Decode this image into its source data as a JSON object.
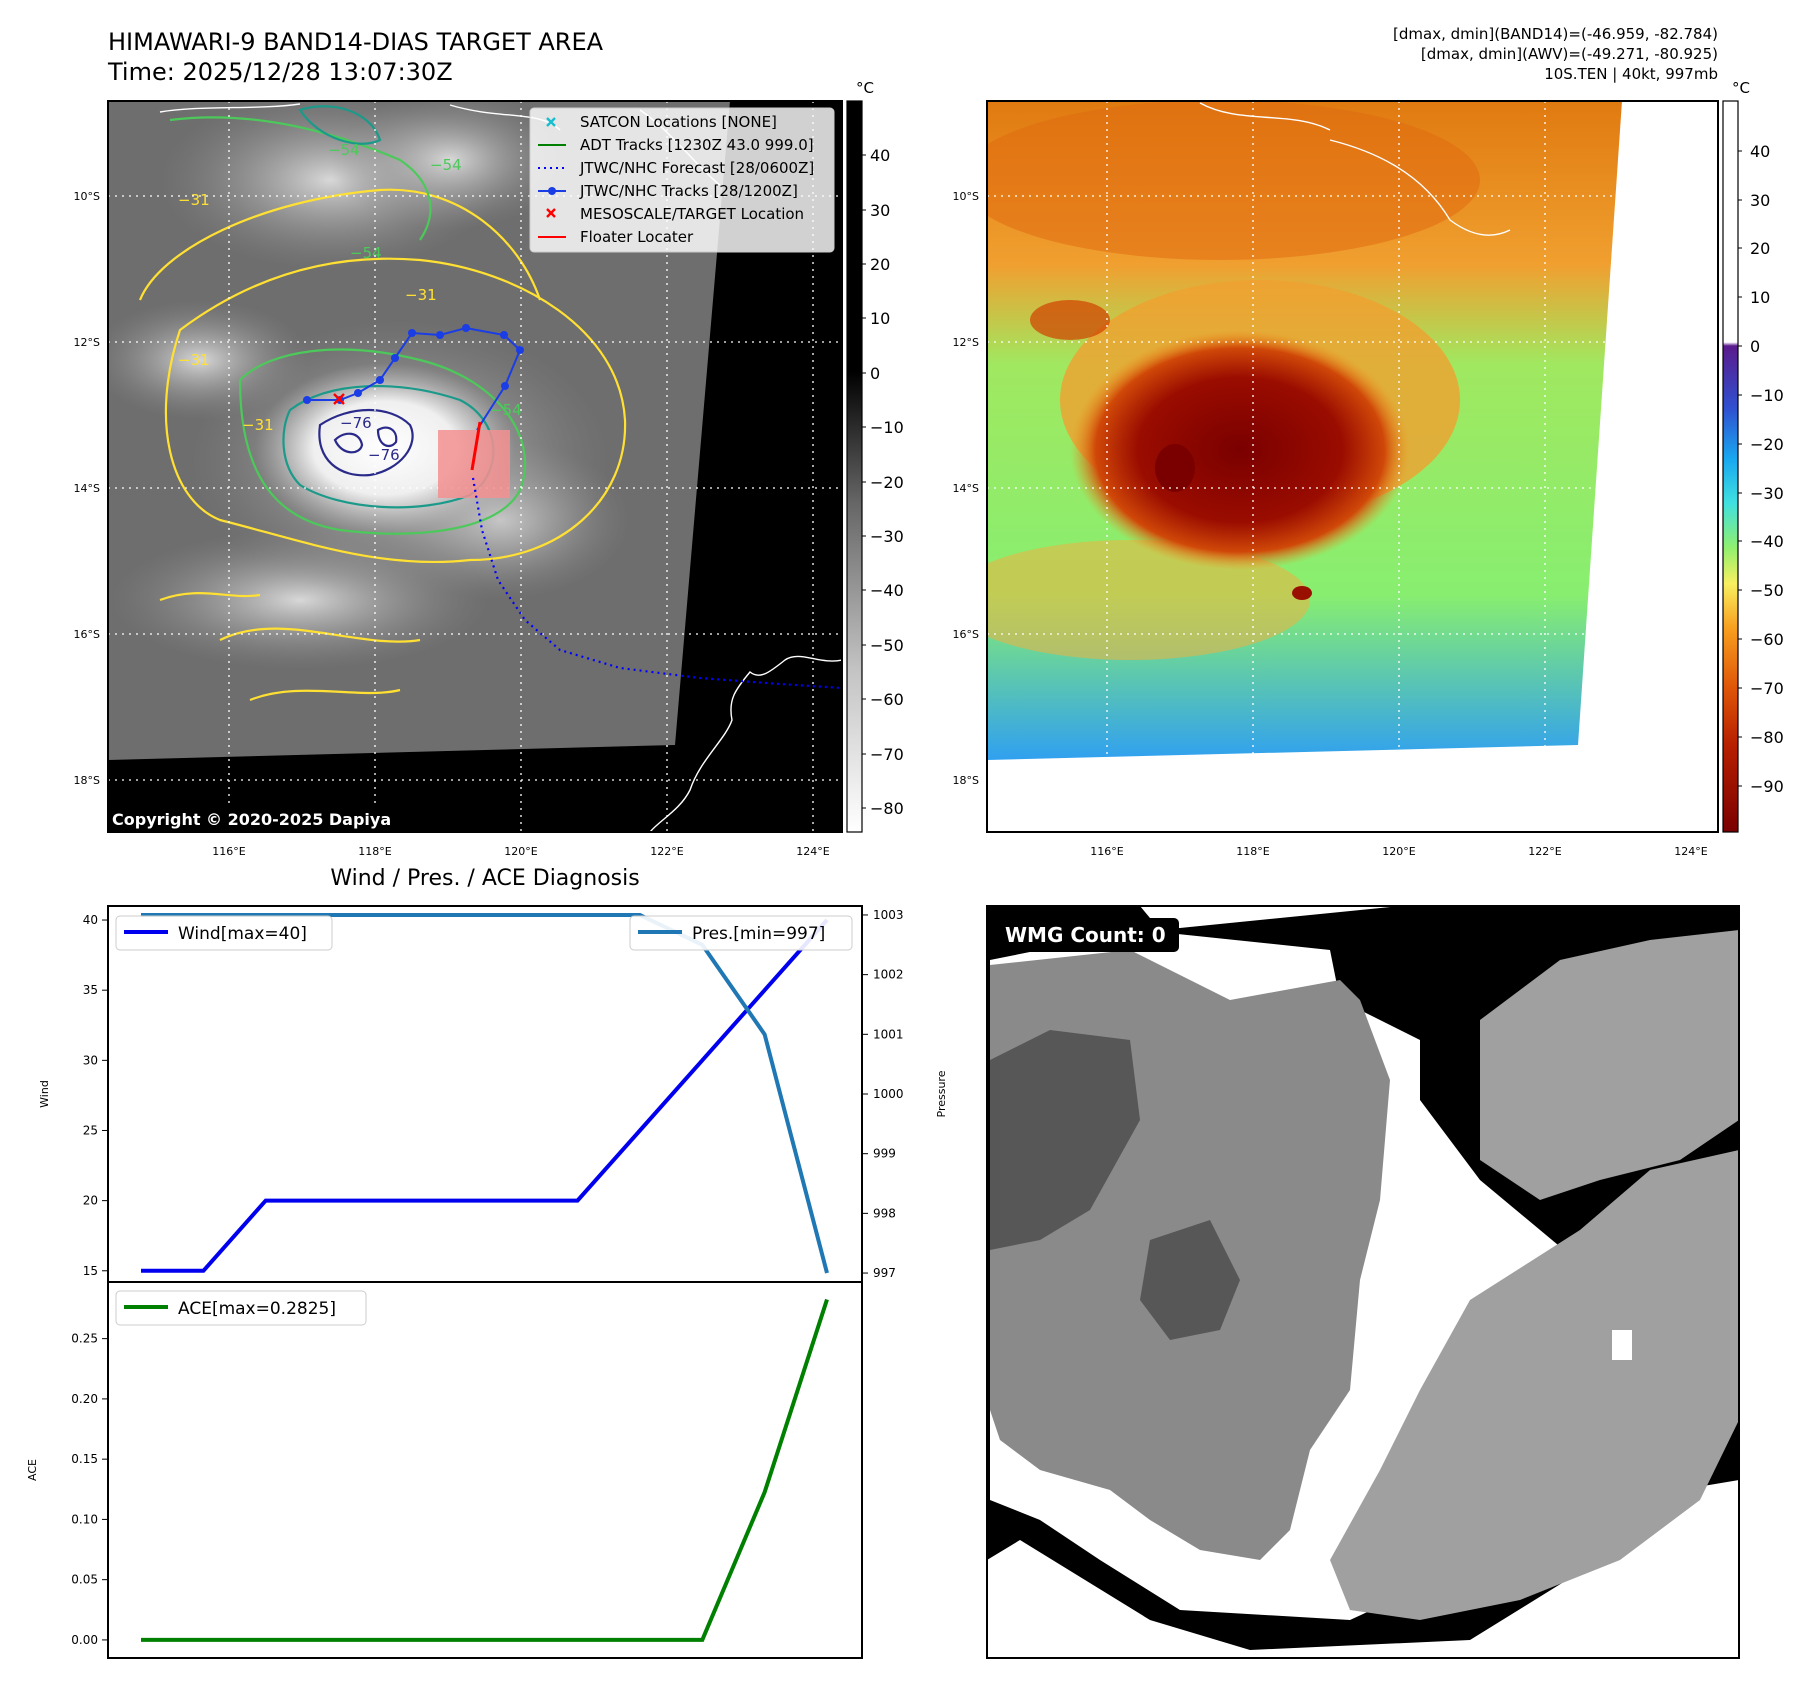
{
  "header": {
    "title_line1": "HIMAWARI-9 BAND14-DIAS TARGET AREA",
    "title_line2": "Time: 2025/12/28 13:07:30Z",
    "stats_line1": "[dmax, dmin](BAND14)=(-46.959, -82.784)",
    "stats_line2": "[dmax, dmin](AWV)=(-49.271, -80.925)",
    "stats_line3": "10S.TEN | 40kt, 997mb"
  },
  "colors": {
    "wind": "#0000ee",
    "pressure": "#1f77b4",
    "ace": "#008000",
    "track": "#1a3de6",
    "forecast": "#0000ff",
    "floater": "#ff0000",
    "satcon": "#17becf",
    "adt": "#008000",
    "contour_yellow": "#ffe033",
    "contour_green": "#4cc95a",
    "contour_teal": "#1b9a8a",
    "contour_navy": "#2a2a8a"
  },
  "map_left": {
    "colorbar_unit": "°C",
    "colorbar_ticks": [
      "40",
      "30",
      "20",
      "10",
      "0",
      "−10",
      "−20",
      "−30",
      "−40",
      "−50",
      "−60",
      "−70",
      "−80"
    ],
    "lat_labels": [
      "10°S",
      "12°S",
      "14°S",
      "16°S",
      "18°S"
    ],
    "lon_labels": [
      "116°E",
      "118°E",
      "120°E",
      "122°E",
      "124°E"
    ],
    "contour_labels": [
      "−54",
      "−54",
      "−31",
      "−31",
      "−54",
      "−31",
      "−54",
      "−76",
      "−76",
      "−31"
    ],
    "copyright": "Copyright © 2020-2025 Dapiya",
    "legend": [
      {
        "icon": "satcon-marker-icon",
        "label": "SATCON Locations [NONE]"
      },
      {
        "icon": "adt-line-icon",
        "label": "ADT Tracks [1230Z 43.0 999.0]"
      },
      {
        "icon": "forecast-dotted-line-icon",
        "label": "JTWC/NHC Forecast [28/0600Z]"
      },
      {
        "icon": "track-line-dot-icon",
        "label": "JTWC/NHC Tracks [28/1200Z]"
      },
      {
        "icon": "target-x-icon",
        "label": "MESOSCALE/TARGET Location"
      },
      {
        "icon": "floater-line-icon",
        "label": "Floater Locater"
      }
    ]
  },
  "map_right": {
    "colorbar_unit": "°C",
    "colorbar_ticks": [
      "40",
      "30",
      "20",
      "10",
      "0",
      "−10",
      "−20",
      "−30",
      "−40",
      "−50",
      "−60",
      "−70",
      "−80",
      "−90"
    ],
    "lat_labels": [
      "10°S",
      "12°S",
      "14°S",
      "16°S",
      "18°S"
    ],
    "lon_labels": [
      "116°E",
      "118°E",
      "120°E",
      "122°E",
      "124°E"
    ]
  },
  "wmg_panel": {
    "badge": "WMG Count: 0"
  },
  "chart_data": [
    {
      "type": "line",
      "title": "Wind / Pres. / ACE Diagnosis",
      "x": [
        0,
        1,
        2,
        3,
        4,
        5,
        6,
        7,
        8,
        9,
        10,
        11
      ],
      "series": [
        {
          "name": "Wind[max=40]",
          "axis": "left",
          "values": [
            15,
            15,
            20,
            20,
            20,
            20,
            20,
            20,
            25,
            30,
            35,
            40
          ]
        },
        {
          "name": "Pres.[min=997]",
          "axis": "right",
          "values": [
            1003,
            1003,
            1003,
            1003,
            1003,
            1003,
            1003,
            1003,
            1003,
            1002.5,
            1001,
            997
          ]
        }
      ],
      "ylabel": "Wind",
      "ylabel_right": "Pressure",
      "ylim": [
        14.2,
        41
      ],
      "ylim_right": [
        996.85,
        1003.15
      ],
      "yticks": [
        "15",
        "20",
        "25",
        "30",
        "35",
        "40"
      ],
      "yticks_right": [
        "997",
        "998",
        "999",
        "1000",
        "1001",
        "1002",
        "1003"
      ],
      "legend_left": "Wind[max=40]",
      "legend_right": "Pres.[min=997]"
    },
    {
      "type": "line",
      "title": "",
      "x": [
        0,
        1,
        2,
        3,
        4,
        5,
        6,
        7,
        8,
        9,
        10,
        11
      ],
      "series": [
        {
          "name": "ACE[max=0.2825]",
          "values": [
            0,
            0,
            0,
            0,
            0,
            0,
            0,
            0,
            0,
            0,
            0.1225,
            0.2825
          ]
        }
      ],
      "ylabel": "ACE",
      "ylim": [
        -0.015,
        0.297
      ],
      "yticks": [
        "0.00",
        "0.05",
        "0.10",
        "0.15",
        "0.20",
        "0.25"
      ],
      "legend": "ACE[max=0.2825]"
    }
  ]
}
